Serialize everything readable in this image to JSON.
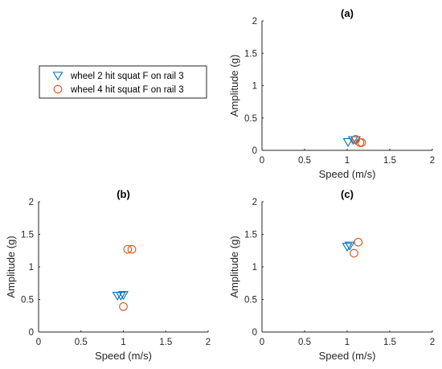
{
  "colors": {
    "wheel2": "#0072BD",
    "wheel4": "#D95319",
    "axis": "#262626"
  },
  "legend": {
    "entries": [
      {
        "label": "wheel 2 hit squat F on rail 3",
        "marker": "triangle-down",
        "series": "wheel2"
      },
      {
        "label": "wheel 4 hit squat F on rail 3",
        "marker": "circle",
        "series": "wheel4"
      }
    ]
  },
  "chart_data": [
    {
      "id": "a",
      "type": "scatter",
      "title": "(a)",
      "xlabel": "Speed (m/s)",
      "ylabel": "Amplitude (g)",
      "xlim": [
        0,
        2
      ],
      "ylim": [
        0,
        2
      ],
      "xticks": [
        "0",
        "0.5",
        "1",
        "1.5",
        "2"
      ],
      "yticks": [
        "0",
        "0.5",
        "1",
        "1.5",
        "2"
      ],
      "series": [
        {
          "name": "wheel 2 hit squat F on rail 3",
          "marker": "triangle-down",
          "color": "#0072BD",
          "points": [
            [
              1.01,
              0.13
            ],
            [
              1.07,
              0.16
            ],
            [
              1.1,
              0.16
            ]
          ]
        },
        {
          "name": "wheel 4 hit squat F on rail 3",
          "marker": "circle",
          "color": "#D95319",
          "points": [
            [
              1.1,
              0.17
            ],
            [
              1.15,
              0.12
            ],
            [
              1.17,
              0.12
            ]
          ]
        }
      ]
    },
    {
      "id": "b",
      "type": "scatter",
      "title": "(b)",
      "xlabel": "Speed (m/s)",
      "ylabel": "Amplitude (g)",
      "xlim": [
        0,
        2
      ],
      "ylim": [
        0,
        2
      ],
      "xticks": [
        "0",
        "0.5",
        "1",
        "1.5",
        "2"
      ],
      "yticks": [
        "0",
        "0.5",
        "1",
        "1.5",
        "2"
      ],
      "series": [
        {
          "name": "wheel 2 hit squat F on rail 3",
          "marker": "triangle-down",
          "color": "#0072BD",
          "points": [
            [
              0.93,
              0.56
            ],
            [
              0.97,
              0.56
            ],
            [
              1.0,
              0.57
            ]
          ]
        },
        {
          "name": "wheel 4 hit squat F on rail 3",
          "marker": "circle",
          "color": "#D95319",
          "points": [
            [
              1.05,
              1.27
            ],
            [
              1.1,
              1.27
            ],
            [
              1.0,
              0.39
            ]
          ]
        }
      ]
    },
    {
      "id": "c",
      "type": "scatter",
      "title": "(c)",
      "xlabel": "Speed (m/s)",
      "ylabel": "Amplitude (g)",
      "xlim": [
        0,
        2
      ],
      "ylim": [
        0,
        2
      ],
      "xticks": [
        "0",
        "0.5",
        "1",
        "1.5",
        "2"
      ],
      "yticks": [
        "0",
        "0.5",
        "1",
        "1.5",
        "2"
      ],
      "series": [
        {
          "name": "wheel 2 hit squat F on rail 3",
          "marker": "triangle-down",
          "color": "#0072BD",
          "points": [
            [
              1.0,
              1.31
            ],
            [
              1.03,
              1.33
            ]
          ]
        },
        {
          "name": "wheel 4 hit squat F on rail 3",
          "marker": "circle",
          "color": "#D95319",
          "points": [
            [
              1.13,
              1.38
            ],
            [
              1.08,
              1.21
            ]
          ]
        }
      ]
    }
  ]
}
